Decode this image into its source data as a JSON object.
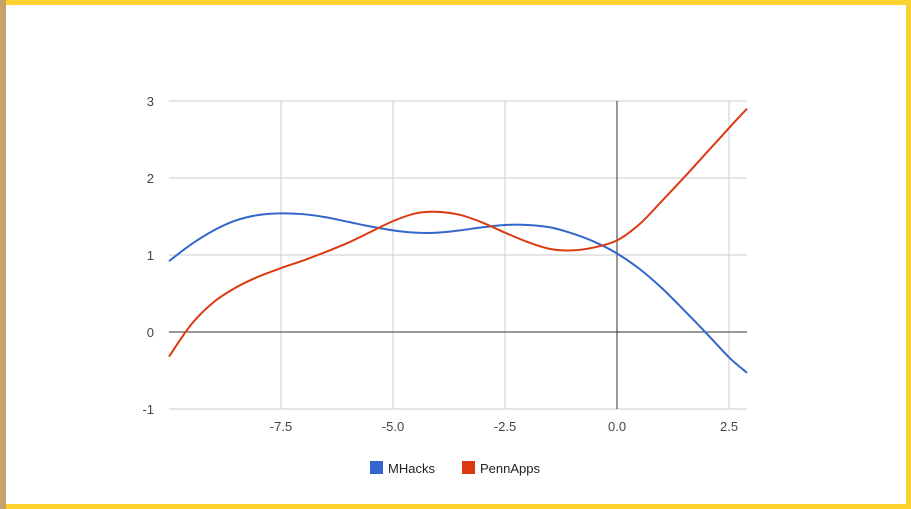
{
  "chart_data": {
    "type": "line",
    "title": "",
    "xlabel": "",
    "ylabel": "",
    "xlim": [
      -10,
      2.9
    ],
    "ylim": [
      -1,
      3
    ],
    "x_ticks": [
      -7.5,
      -5.0,
      -2.5,
      0.0,
      2.5
    ],
    "x_tick_labels": [
      "-7.5",
      "-5.0",
      "-2.5",
      "0.0",
      "2.5"
    ],
    "y_ticks": [
      -1,
      0,
      1,
      2,
      3
    ],
    "y_tick_labels": [
      "-1",
      "0",
      "1",
      "2",
      "3"
    ],
    "grid": true,
    "legend_position": "bottom",
    "series": [
      {
        "name": "MHacks",
        "color": "#3366cc",
        "x": [
          -10,
          -9.5,
          -9,
          -8.5,
          -8,
          -7.5,
          -7,
          -6.5,
          -6,
          -5.5,
          -5,
          -4.5,
          -4,
          -3.5,
          -3,
          -2.5,
          -2,
          -1.5,
          -1,
          -0.5,
          0,
          0.5,
          1,
          1.5,
          2,
          2.5,
          2.9
        ],
        "y": [
          0.92,
          1.14,
          1.32,
          1.45,
          1.52,
          1.54,
          1.53,
          1.49,
          1.43,
          1.37,
          1.32,
          1.29,
          1.29,
          1.32,
          1.36,
          1.39,
          1.39,
          1.36,
          1.28,
          1.17,
          1.02,
          0.82,
          0.57,
          0.28,
          -0.02,
          -0.33,
          -0.53
        ]
      },
      {
        "name": "PennApps",
        "color": "#dc3912",
        "x": [
          -10,
          -9.5,
          -9,
          -8.5,
          -8,
          -7.5,
          -7,
          -6.5,
          -6,
          -5.5,
          -5,
          -4.5,
          -4,
          -3.5,
          -3,
          -2.5,
          -2,
          -1.5,
          -1,
          -0.5,
          0,
          0.5,
          1,
          1.5,
          2,
          2.5,
          2.9
        ],
        "y": [
          -0.32,
          0.1,
          0.39,
          0.58,
          0.72,
          0.83,
          0.93,
          1.04,
          1.16,
          1.3,
          1.44,
          1.54,
          1.56,
          1.52,
          1.42,
          1.29,
          1.17,
          1.08,
          1.06,
          1.1,
          1.19,
          1.4,
          1.7,
          2.01,
          2.33,
          2.65,
          2.9
        ]
      }
    ]
  }
}
